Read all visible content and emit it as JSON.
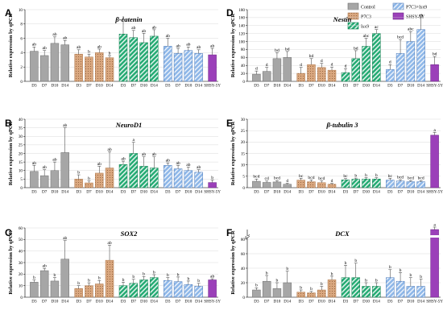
{
  "legend": [
    {
      "label": "Control",
      "fill": "#a6a6a6",
      "pattern": "none"
    },
    {
      "label": "P7C3",
      "fill": "#d9a77f",
      "pattern": "dots"
    },
    {
      "label": "Isx9",
      "fill": "#21a971",
      "pattern": "diag"
    },
    {
      "label": "P7C3+Isx9",
      "fill": "#8eb7e8",
      "pattern": "diag"
    },
    {
      "label": "SHSY-5Y",
      "fill": "#9b40b9",
      "pattern": "none"
    }
  ],
  "colors": {
    "control": "#a6a6a6",
    "control_edge": "#6e6e6e",
    "p7c3": "#d9a77f",
    "p7c3_edge": "#b07a4e",
    "isx9": "#21a971",
    "isx9_edge": "#0f7a4b",
    "combo": "#8eb7e8",
    "combo_edge": "#4a78b8",
    "shsy": "#9b40b9",
    "shsy_edge": "#6b2287"
  },
  "chart_data": [
    {
      "type": "bar",
      "panel": "A",
      "title": "β-catenin",
      "ylabel": "Relative expression by qPCR",
      "ylim": [
        0,
        10
      ],
      "yticks": [
        0,
        2,
        4,
        6,
        8,
        10
      ],
      "categories": [
        "D3",
        "D7",
        "D10",
        "D14",
        "D3",
        "D7",
        "D10",
        "D14",
        "D3",
        "D7",
        "D10",
        "D14",
        "D3",
        "D7",
        "D10",
        "D14",
        "SHSY-5Y"
      ],
      "groups": [
        "control",
        "control",
        "control",
        "control",
        "p7c3",
        "p7c3",
        "p7c3",
        "p7c3",
        "isx9",
        "isx9",
        "isx9",
        "isx9",
        "combo",
        "combo",
        "combo",
        "combo",
        "shsy"
      ],
      "values": [
        4.2,
        3.6,
        5.3,
        5.1,
        3.8,
        3.4,
        4.0,
        3.3,
        6.6,
        6.1,
        5.4,
        6.3,
        4.9,
        3.9,
        4.3,
        3.9,
        3.7
      ],
      "errors": [
        0.6,
        0.7,
        0.9,
        0.6,
        0.6,
        0.4,
        0.5,
        0.3,
        2.0,
        1.0,
        1.3,
        0.9,
        1.1,
        0.7,
        0.5,
        0.5,
        0.9
      ],
      "labels": [
        "ab",
        "ab",
        "ab",
        "ab",
        "ab",
        "b",
        "ab",
        "b",
        "a",
        "ab",
        "ab",
        "ab",
        "ab",
        "ab",
        "ab",
        "ab",
        "ab"
      ],
      "grid": true
    },
    {
      "type": "bar",
      "panel": "B",
      "title": "NeuroD1",
      "ylabel": "Relative expression by qPCR",
      "ylim": [
        0,
        40
      ],
      "yticks": [
        0,
        5,
        10,
        15,
        20,
        25,
        30,
        35,
        40
      ],
      "categories": [
        "D3",
        "D7",
        "D10",
        "D14",
        "D3",
        "D7",
        "D10",
        "D14",
        "D3",
        "D7",
        "D10",
        "D14",
        "D3",
        "D7",
        "D10",
        "D14",
        "SHSY-5Y"
      ],
      "groups": [
        "control",
        "control",
        "control",
        "control",
        "p7c3",
        "p7c3",
        "p7c3",
        "p7c3",
        "isx9",
        "isx9",
        "isx9",
        "isx9",
        "combo",
        "combo",
        "combo",
        "combo",
        "shsy"
      ],
      "values": [
        9.5,
        7.0,
        10.0,
        20.5,
        5.0,
        2.8,
        8.5,
        11.5,
        13.5,
        20.0,
        12.5,
        11.5,
        13.0,
        11.0,
        10.0,
        9.0,
        3.0
      ],
      "errors": [
        3.5,
        3.5,
        5.0,
        14.5,
        2.5,
        1.2,
        4.0,
        9.5,
        2.0,
        6.5,
        5.5,
        6.5,
        1.5,
        2.0,
        2.0,
        1.5,
        1.5
      ],
      "labels": [
        "ab",
        "ab",
        "ab",
        "ab",
        "b",
        "b",
        "ab",
        "ab",
        "ab",
        "a",
        "ab",
        "ab",
        "ab",
        "ab",
        "ab",
        "ab",
        "b"
      ],
      "grid": true
    },
    {
      "type": "bar",
      "panel": "C",
      "title": "SOX2",
      "ylabel": "Relative expression by qPCR",
      "ylim": [
        0,
        60
      ],
      "yticks": [
        0,
        10,
        20,
        30,
        40,
        50,
        60
      ],
      "categories": [
        "D3",
        "D7",
        "D10",
        "D14",
        "D3",
        "D7",
        "D10",
        "D14",
        "D3",
        "D7",
        "D10",
        "D14",
        "D3",
        "D7",
        "D10",
        "D14",
        "SHSY-5Y"
      ],
      "groups": [
        "control",
        "control",
        "control",
        "control",
        "p7c3",
        "p7c3",
        "p7c3",
        "p7c3",
        "isx9",
        "isx9",
        "isx9",
        "isx9",
        "combo",
        "combo",
        "combo",
        "combo",
        "shsy"
      ],
      "values": [
        13.0,
        23.0,
        14.0,
        33.0,
        7.5,
        10.0,
        11.5,
        32.0,
        10.0,
        12.0,
        15.0,
        17.0,
        14.5,
        13.5,
        11.0,
        9.5,
        15.0
      ],
      "errors": [
        2.0,
        2.0,
        3.0,
        16.0,
        2.5,
        2.5,
        3.0,
        13.0,
        3.0,
        3.5,
        3.0,
        2.5,
        2.5,
        4.0,
        3.0,
        2.5,
        1.0
      ],
      "labels": [
        "b",
        "ab",
        "b",
        "ab",
        "b",
        "b",
        "b",
        "ab",
        "b",
        "b",
        "b",
        "b",
        "b",
        "b",
        "b",
        "b",
        "ab"
      ],
      "grid": true
    },
    {
      "type": "bar",
      "panel": "D",
      "title": "Nestin",
      "ylabel": "Relative expression by qPCR",
      "ylim": [
        0,
        180
      ],
      "yticks": [
        0,
        20,
        40,
        60,
        80,
        100,
        120,
        140,
        160,
        180
      ],
      "categories": [
        "D3",
        "D7",
        "D10",
        "D14",
        "D3",
        "D7",
        "D10",
        "D14",
        "D3",
        "D7",
        "D10",
        "D14",
        "D3",
        "D7",
        "D10",
        "D14",
        "SHSY-5Y"
      ],
      "groups": [
        "control",
        "control",
        "control",
        "control",
        "p7c3",
        "p7c3",
        "p7c3",
        "p7c3",
        "isx9",
        "isx9",
        "isx9",
        "isx9",
        "combo",
        "combo",
        "combo",
        "combo",
        "shsy"
      ],
      "values": [
        18,
        25,
        57,
        60,
        20,
        42,
        35,
        28,
        22,
        57,
        88,
        120,
        30,
        70,
        100,
        130,
        42
      ],
      "errors": [
        8,
        10,
        15,
        15,
        15,
        15,
        10,
        8,
        10,
        20,
        20,
        10,
        12,
        35,
        25,
        30,
        20
      ],
      "labels": [
        "d",
        "d",
        "bd",
        "bd",
        "d",
        "bd",
        "d",
        "d",
        "d",
        "bd",
        "abc",
        "ac",
        "d",
        "bcd",
        "abc",
        "ab",
        "bd"
      ],
      "grid": true
    },
    {
      "type": "bar",
      "panel": "E",
      "title": "β-tubulin 3",
      "ylabel": "Relative expression by qPCR",
      "ylim": [
        0,
        30
      ],
      "yticks": [
        0,
        5,
        10,
        15,
        20,
        25,
        30
      ],
      "categories": [
        "D3",
        "D7",
        "D10",
        "D14",
        "D3",
        "D7",
        "D10",
        "D14",
        "D3",
        "D7",
        "D10",
        "D14",
        "D3",
        "D7",
        "D10",
        "D14",
        "SHSY-5Y"
      ],
      "groups": [
        "control",
        "control",
        "control",
        "control",
        "p7c3",
        "p7c3",
        "p7c3",
        "p7c3",
        "isx9",
        "isx9",
        "isx9",
        "isx9",
        "combo",
        "combo",
        "combo",
        "combo",
        "shsy"
      ],
      "values": [
        2.8,
        2.3,
        2.5,
        1.5,
        3.3,
        2.6,
        2.2,
        1.5,
        3.4,
        3.7,
        3.8,
        3.8,
        3.3,
        2.9,
        2.6,
        2.6,
        23.0
      ],
      "errors": [
        1.0,
        0.6,
        0.6,
        0.4,
        0.8,
        0.8,
        0.8,
        0.4,
        0.6,
        0.5,
        0.6,
        0.6,
        0.8,
        0.6,
        0.5,
        0.5,
        1.2
      ],
      "labels": [
        "bcd",
        "cd",
        "bcd",
        "d",
        "bc",
        "bcd",
        "bcd",
        "d",
        "bc",
        "b",
        "b",
        "b",
        "bc",
        "bcd",
        "bcd",
        "bcd",
        "a"
      ],
      "grid": true
    },
    {
      "type": "bar",
      "panel": "F",
      "title": "DCX",
      "ylabel": "Relative expression by qPCR",
      "ylim": [
        0,
        80
      ],
      "yticks": [
        0,
        20,
        40,
        60,
        80
      ],
      "categories": [
        "D3",
        "D7",
        "D10",
        "D14",
        "D3",
        "D7",
        "D10",
        "D14",
        "D3",
        "D7",
        "D10",
        "D14",
        "D3",
        "D7",
        "D10",
        "D14",
        "SHSY-5Y"
      ],
      "groups": [
        "control",
        "control",
        "control",
        "control",
        "p7c3",
        "p7c3",
        "p7c3",
        "p7c3",
        "isx9",
        "isx9",
        "isx9",
        "isx9",
        "combo",
        "combo",
        "combo",
        "combo",
        "shsy"
      ],
      "values": [
        10,
        22,
        12,
        20,
        7,
        6,
        10,
        24,
        27,
        27,
        15,
        15,
        27,
        22,
        15,
        15,
        200
      ],
      "errors": [
        3,
        8,
        8,
        16,
        3,
        2,
        5,
        5,
        17,
        20,
        5,
        5,
        11,
        12,
        12,
        10,
        5
      ],
      "labels": [
        "b",
        "b",
        "b",
        "b",
        "b",
        "b",
        "b",
        "b",
        "b",
        "b",
        "b",
        "b",
        "b",
        "b",
        "b",
        "b",
        "a"
      ],
      "axis_break": {
        "after": 80,
        "visible_top": 200
      },
      "grid": true
    }
  ]
}
